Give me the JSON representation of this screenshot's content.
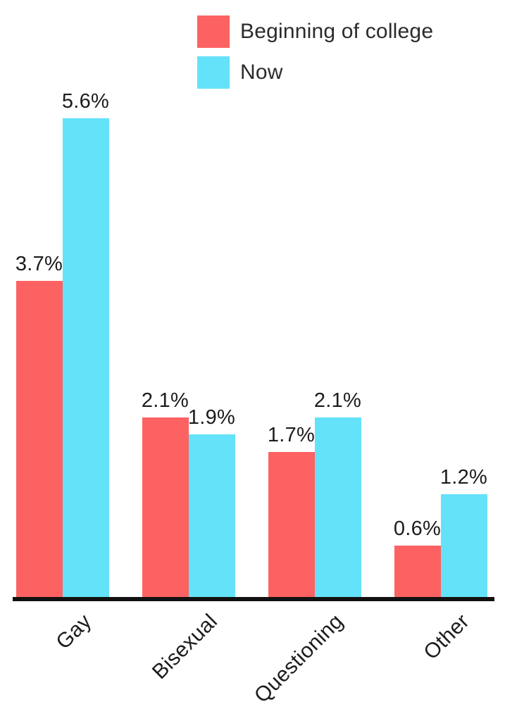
{
  "chart_data": {
    "type": "bar",
    "title": "",
    "categories": [
      "Gay",
      "Bisexual",
      "Questioning",
      "Other"
    ],
    "series": [
      {
        "name": "Beginning of college",
        "color": "#FC6262",
        "values": [
          3.7,
          2.1,
          1.7,
          0.6
        ],
        "data_labels": [
          "3.7%",
          "2.1%",
          "1.7%",
          "0.6%"
        ]
      },
      {
        "name": "Now",
        "color": "#64E2F9",
        "values": [
          5.6,
          1.9,
          2.1,
          1.2
        ],
        "data_labels": [
          "5.6%",
          "1.9%",
          "2.1%",
          "1.2%"
        ]
      }
    ],
    "value_suffix": "%",
    "ylim": [
      0,
      6
    ],
    "grid": false,
    "y_axis_visible": false,
    "legend_position": "top-center",
    "axis_line_color": "#111111",
    "text_color": "#1c1c1c"
  }
}
